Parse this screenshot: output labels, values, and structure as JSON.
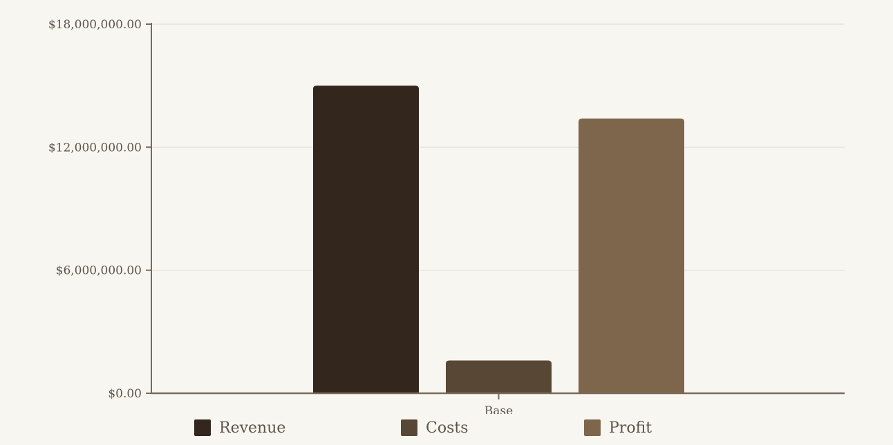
{
  "chart_data": {
    "type": "bar",
    "categories": [
      "Base"
    ],
    "series": [
      {
        "name": "Revenue",
        "values": [
          15000000
        ],
        "color": "#33271d"
      },
      {
        "name": "Costs",
        "values": [
          1600000
        ],
        "color": "#594735"
      },
      {
        "name": "Profit",
        "values": [
          13400000
        ],
        "color": "#7e664d"
      }
    ],
    "ylim": [
      0,
      18000000
    ],
    "yticks": [
      0,
      6000000,
      12000000,
      18000000
    ],
    "ytick_labels": [
      "$0.00",
      "$6,000,000.00",
      "$12,000,000.00",
      "$18,000,000.00"
    ],
    "title": "",
    "xlabel": "",
    "ylabel": "",
    "grid": true,
    "legend_position": "bottom",
    "colors": {
      "background": "#f8f6f1",
      "axis": "#7a6a5b",
      "grid": "#e4e0d8",
      "text": "#5e5449"
    }
  }
}
